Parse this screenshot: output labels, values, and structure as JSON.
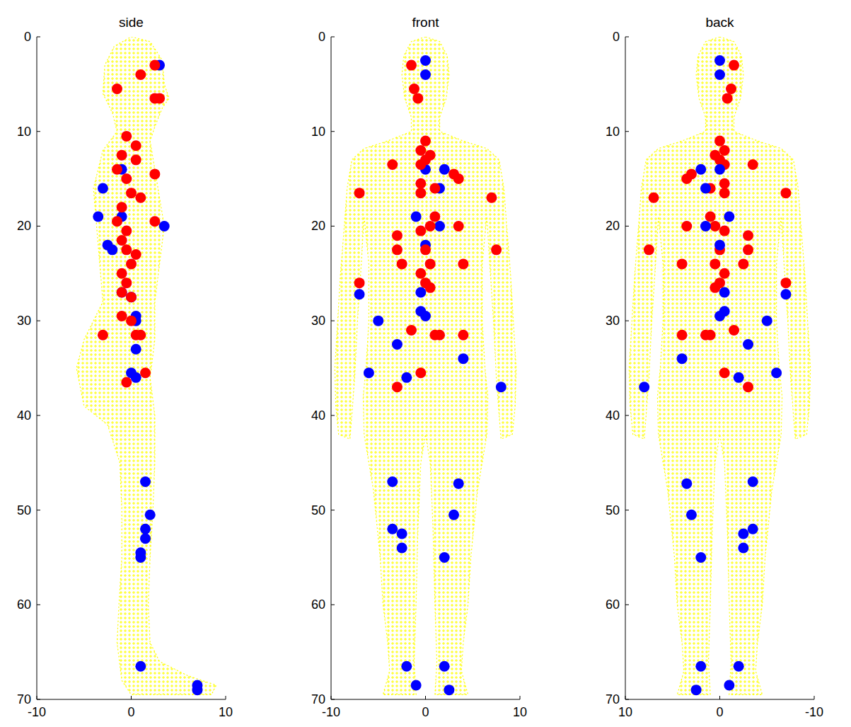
{
  "chart_data": [
    {
      "type": "scatter",
      "title": "side",
      "xlim": [
        -10,
        10
      ],
      "ylim": [
        70,
        0
      ],
      "xticks": [
        -10,
        0,
        10
      ],
      "yticks": [
        0,
        10,
        20,
        30,
        40,
        50,
        60,
        70
      ],
      "series": [
        {
          "type": "area",
          "color": "#ffff00",
          "marker": "plus",
          "x": [
            0,
            2,
            3.3,
            3.5,
            4,
            3.3,
            2.5,
            2,
            2.5,
            3,
            3.5,
            3,
            2.5,
            2.5,
            2,
            2.5,
            2.5,
            2.3,
            2,
            1.8,
            2,
            3,
            6,
            9,
            8.5,
            0,
            -1,
            -1.5,
            -1.3,
            -1,
            -1,
            -1.2,
            -2.5,
            -5,
            -5.8,
            -5,
            -3,
            -3.5,
            -4,
            -3,
            -1.5,
            -2,
            -3,
            -2.8,
            -1.8
          ],
          "y": [
            0,
            0.5,
            2.5,
            5,
            6.5,
            7.5,
            9.5,
            11,
            14,
            17,
            20,
            24,
            28,
            32,
            36,
            40,
            45,
            50,
            55,
            60,
            64,
            66,
            67.5,
            68.5,
            69.5,
            69.5,
            68,
            64,
            60,
            55,
            50,
            45,
            41,
            39,
            35,
            32,
            28,
            22,
            16,
            12,
            10,
            8,
            6,
            3,
            1
          ]
        },
        {
          "type": "scatter",
          "color": "#0000ff",
          "marker": "circle",
          "x": [
            3,
            -1,
            -3,
            -3.5,
            -1,
            3.5,
            -2.5,
            -2,
            -1,
            0,
            0.5,
            0.5,
            0.5,
            0,
            0.5,
            1.5,
            2,
            1.5,
            1.5,
            1,
            1,
            1,
            7,
            7
          ],
          "y": [
            3,
            14,
            16,
            19,
            19,
            20,
            22,
            22.5,
            27,
            27.5,
            29.5,
            30,
            33,
            35.5,
            36,
            47,
            50.5,
            52,
            53,
            54.5,
            55,
            66.5,
            68.5,
            69
          ]
        },
        {
          "type": "scatter",
          "color": "#ff0000",
          "marker": "circle",
          "x": [
            1,
            2.5,
            -1.5,
            3,
            2.5,
            -0.5,
            0.5,
            -1,
            0.5,
            -1.5,
            -0.5,
            0,
            1,
            -1,
            2.5,
            -1.5,
            -0.5,
            2.5,
            -1,
            -0.5,
            0.5,
            0,
            -1,
            -0.5,
            -1,
            0,
            -1,
            0,
            -3,
            0.5,
            1,
            1.5,
            -0.5
          ],
          "y": [
            4,
            3,
            5.5,
            6.5,
            6.5,
            10.5,
            11.5,
            12.5,
            13,
            14,
            15,
            16.5,
            17,
            18,
            14.5,
            19.5,
            20.5,
            19.5,
            21.5,
            22.5,
            23,
            24,
            25,
            26,
            27,
            27.5,
            29.5,
            30,
            31.5,
            31.5,
            31.5,
            35.5,
            36.5
          ]
        }
      ]
    },
    {
      "type": "scatter",
      "title": "front",
      "xlim": [
        -10,
        10
      ],
      "ylim": [
        70,
        0
      ],
      "xticks": [
        -10,
        0,
        10
      ],
      "yticks": [
        0,
        10,
        20,
        30,
        40,
        50,
        60,
        70
      ],
      "series": [
        {
          "type": "area",
          "color": "#ffff00",
          "marker": "plus",
          "x": [
            0,
            1.5,
            2.3,
            2.5,
            2.2,
            1.5,
            1.5,
            4,
            6.5,
            7.8,
            8.3,
            8.6,
            9,
            9.3,
            9.6,
            9.5,
            9.2,
            8,
            7.8,
            7.5,
            7.2,
            6.8,
            6.5,
            6,
            6,
            6.3,
            6.6,
            6.5,
            5.5,
            4.8,
            4.5,
            4,
            3.8,
            4.5,
            1,
            1.2,
            1,
            0.8,
            0.5,
            0,
            -0.5,
            -0.8,
            -1,
            -1.2,
            -1,
            -4.5,
            -3.8,
            -4,
            -4.5,
            -4.8,
            -5.5,
            -6.5,
            -6.6,
            -6.3,
            -6,
            -6,
            -6.5,
            -6.8,
            -7.2,
            -7.5,
            -7.8,
            -8,
            -9.2,
            -9.5,
            -9.6,
            -9.3,
            -9,
            -8.6,
            -8.3,
            -7.8,
            -6.5,
            -4,
            -1.5,
            -1.5,
            -2.2,
            -2.5,
            -2.3,
            -1.5
          ],
          "y": [
            0,
            0.5,
            2,
            4,
            6.5,
            8.5,
            10,
            11,
            11.8,
            13,
            16,
            20,
            25,
            30,
            35,
            39,
            42,
            42.5,
            40,
            36,
            30,
            24,
            19,
            24,
            30,
            35,
            38,
            42,
            48,
            55,
            60,
            64,
            67,
            69.5,
            69.5,
            66,
            60,
            52,
            45,
            42,
            45,
            52,
            60,
            66,
            69.5,
            69.5,
            67,
            64,
            60,
            55,
            48,
            42,
            38,
            35,
            30,
            24,
            19,
            24,
            30,
            36,
            40,
            42.5,
            42,
            39,
            35,
            30,
            25,
            20,
            16,
            13,
            11.8,
            11,
            10,
            8.5,
            6.5,
            4,
            2,
            0.5
          ]
        },
        {
          "type": "scatter",
          "color": "#0000ff",
          "marker": "circle",
          "x": [
            0,
            0,
            2,
            0,
            1.5,
            -1,
            1.5,
            0,
            -0.5,
            -0.5,
            0,
            -7,
            -5,
            -3,
            4,
            -2,
            -6,
            8,
            -3.5,
            3.5,
            -3.5,
            -2.5,
            3,
            -2.5,
            2,
            -2,
            2,
            -1,
            2.5
          ],
          "y": [
            2.5,
            4,
            14,
            14,
            16,
            19,
            20,
            22,
            27,
            29,
            29.5,
            27.2,
            30,
            32.5,
            34,
            36,
            35.5,
            37,
            47,
            47.2,
            52,
            52.5,
            50.5,
            54,
            55,
            66.5,
            66.5,
            68.5,
            69
          ]
        },
        {
          "type": "scatter",
          "color": "#ff0000",
          "marker": "circle",
          "x": [
            -1.5,
            -1.2,
            -0.8,
            -3.5,
            0,
            -0.5,
            0,
            0.5,
            -0.5,
            3,
            3.5,
            -0.5,
            -0.5,
            1,
            3.5,
            1,
            0.5,
            -0.5,
            -3,
            -3,
            -2.5,
            0,
            0.5,
            -0.5,
            0,
            0.5,
            -7,
            7,
            7.5,
            4,
            -7,
            -1.5,
            1,
            1.5,
            4,
            -0.5,
            -3
          ],
          "y": [
            3,
            5.5,
            6.5,
            13.5,
            11,
            12,
            13,
            12.5,
            13.5,
            14.5,
            15,
            15.5,
            16.5,
            16,
            20,
            19,
            20,
            20.5,
            21,
            22.5,
            24,
            22.5,
            24,
            25,
            26,
            26.5,
            16.5,
            17,
            22.5,
            24,
            26,
            31,
            31.5,
            31.5,
            31.5,
            35.5,
            37
          ]
        }
      ]
    },
    {
      "type": "scatter",
      "title": "back",
      "xlim": [
        10,
        -10
      ],
      "ylim": [
        70,
        0
      ],
      "xticks": [
        10,
        0,
        -10
      ],
      "yticks": [
        0,
        10,
        20,
        30,
        40,
        50,
        60,
        70
      ],
      "series": [
        {
          "type": "area",
          "color": "#ffff00",
          "marker": "plus",
          "x": [
            0,
            1.5,
            2.3,
            2.5,
            2.2,
            1.5,
            1.5,
            4,
            6.5,
            7.8,
            8.3,
            8.6,
            9,
            9.3,
            9.6,
            9.5,
            9.2,
            8,
            7.8,
            7.5,
            7.2,
            6.8,
            6.5,
            6,
            6,
            6.3,
            6.6,
            6.5,
            5.5,
            4.8,
            4.5,
            4,
            3.8,
            4.5,
            1,
            1.2,
            1,
            0.8,
            0.5,
            0,
            -0.5,
            -0.8,
            -1,
            -1.2,
            -1,
            -4.5,
            -3.8,
            -4,
            -4.5,
            -4.8,
            -5.5,
            -6.5,
            -6.6,
            -6.3,
            -6,
            -6,
            -6.5,
            -6.8,
            -7.2,
            -7.5,
            -7.8,
            -8,
            -9.2,
            -9.5,
            -9.6,
            -9.3,
            -9,
            -8.6,
            -8.3,
            -7.8,
            -6.5,
            -4,
            -1.5,
            -1.5,
            -2.2,
            -2.5,
            -2.3,
            -1.5
          ],
          "y": [
            0,
            0.5,
            2,
            4,
            6.5,
            8.5,
            10,
            11,
            11.8,
            13,
            16,
            20,
            25,
            30,
            35,
            39,
            42,
            42.5,
            40,
            36,
            30,
            24,
            19,
            24,
            30,
            35,
            38,
            42,
            48,
            55,
            60,
            64,
            67,
            69.5,
            69.5,
            66,
            60,
            52,
            45,
            42,
            45,
            52,
            60,
            66,
            69.5,
            69.5,
            67,
            64,
            60,
            55,
            48,
            42,
            38,
            35,
            30,
            24,
            19,
            24,
            30,
            36,
            40,
            42.5,
            42,
            39,
            35,
            30,
            25,
            20,
            16,
            13,
            11.8,
            11,
            10,
            8.5,
            6.5,
            4,
            2,
            0.5
          ]
        },
        {
          "type": "scatter",
          "color": "#ff0000",
          "marker": "circle",
          "x": [
            -1.5,
            -1.2,
            -0.8,
            -3.5,
            0,
            -0.5,
            0,
            0.5,
            -0.5,
            3,
            3.5,
            -0.5,
            -0.5,
            1,
            3.5,
            1,
            0.5,
            -0.5,
            -3,
            -3,
            -2.5,
            0,
            0.5,
            -0.5,
            0,
            0.5,
            -7,
            7,
            7.5,
            4,
            -7,
            -1.5,
            1,
            1.5,
            4,
            -0.5,
            -3
          ],
          "y": [
            3,
            5.5,
            6.5,
            13.5,
            11,
            12,
            13,
            12.5,
            13.5,
            14.5,
            15,
            15.5,
            16.5,
            16,
            20,
            19,
            20,
            20.5,
            21,
            22.5,
            24,
            22.5,
            24,
            25,
            26,
            26.5,
            16.5,
            17,
            22.5,
            24,
            26,
            31,
            31.5,
            31.5,
            31.5,
            35.5,
            37
          ]
        },
        {
          "type": "scatter",
          "color": "#0000ff",
          "marker": "circle",
          "x": [
            0,
            0,
            2,
            0,
            1.5,
            -1,
            1.5,
            0,
            -0.5,
            -0.5,
            0,
            -7,
            -5,
            -3,
            4,
            -2,
            -6,
            8,
            -3.5,
            3.5,
            -3.5,
            -2.5,
            3,
            -2.5,
            2,
            -2,
            2,
            -1,
            2.5
          ],
          "y": [
            2.5,
            4,
            14,
            14,
            16,
            19,
            20,
            22,
            27,
            29,
            29.5,
            27.2,
            30,
            32.5,
            34,
            36,
            35.5,
            37,
            47,
            47.2,
            52,
            52.5,
            50.5,
            54,
            55,
            66.5,
            66.5,
            68.5,
            69
          ]
        }
      ]
    }
  ]
}
